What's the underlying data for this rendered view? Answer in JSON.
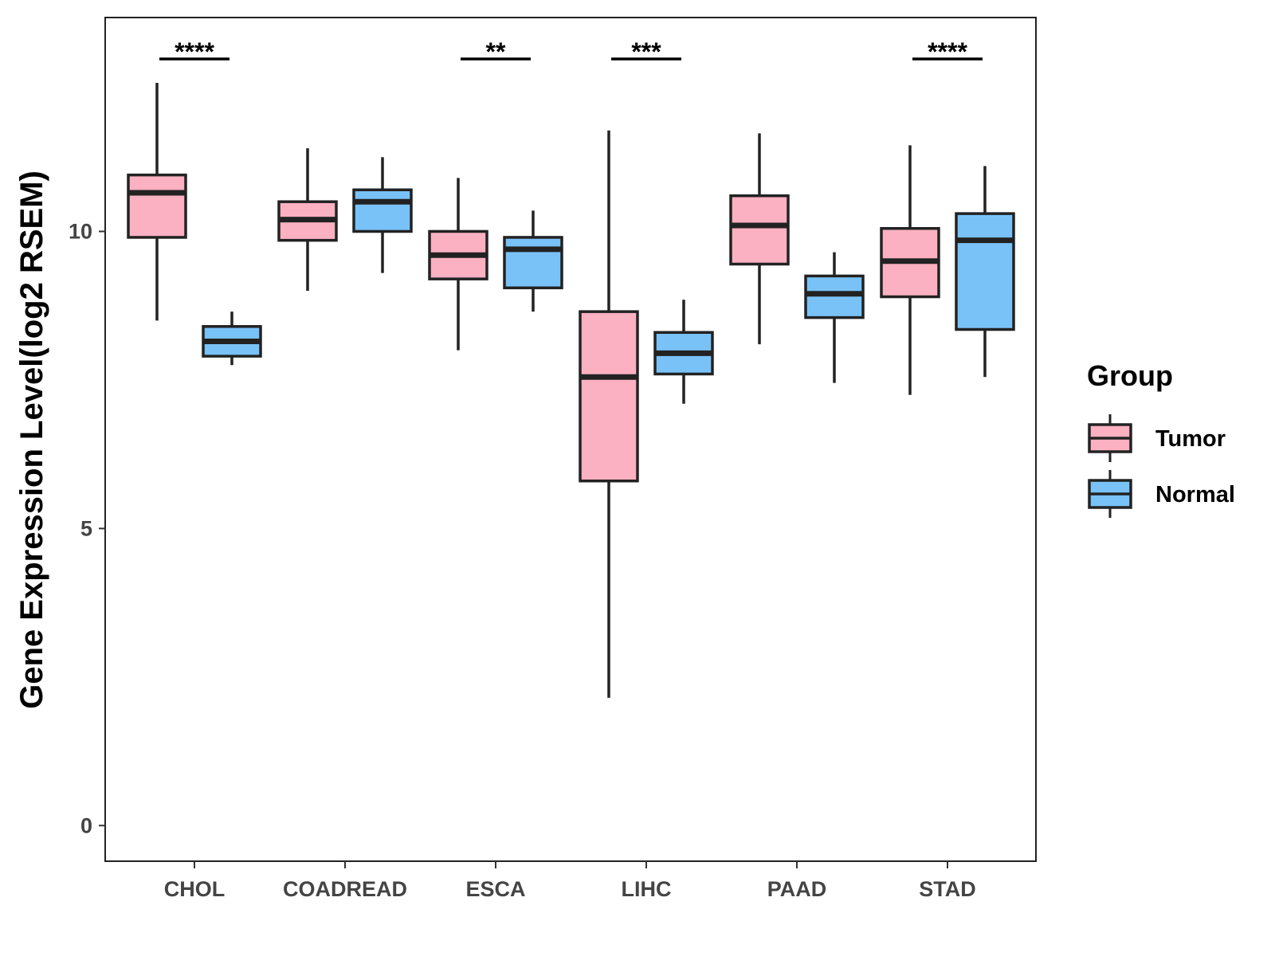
{
  "chart_data": {
    "type": "boxplot",
    "title": "",
    "xlabel": "",
    "ylabel": "Gene Expression Level(log2 RSEM)",
    "ylim": [
      -0.6,
      13.6
    ],
    "yticks": [
      0,
      5,
      10
    ],
    "categories": [
      "CHOL",
      "COADREAD",
      "ESCA",
      "LIHC",
      "PAAD",
      "STAD"
    ],
    "legend": {
      "title": "Group",
      "position": "right"
    },
    "colors": {
      "Tumor": "#FBB1C2",
      "Normal": "#79C2F8",
      "outline": "#222222"
    },
    "series": [
      {
        "name": "Tumor",
        "boxes": [
          {
            "min": 8.5,
            "q1": 9.9,
            "median": 10.65,
            "q3": 10.95,
            "max": 12.5
          },
          {
            "min": 9.0,
            "q1": 9.85,
            "median": 10.2,
            "q3": 10.5,
            "max": 11.4
          },
          {
            "min": 8.0,
            "q1": 9.2,
            "median": 9.6,
            "q3": 10.0,
            "max": 10.9
          },
          {
            "min": 2.15,
            "q1": 5.8,
            "median": 7.55,
            "q3": 8.65,
            "max": 11.7
          },
          {
            "min": 8.1,
            "q1": 9.45,
            "median": 10.1,
            "q3": 10.6,
            "max": 11.65
          },
          {
            "min": 7.25,
            "q1": 8.9,
            "median": 9.5,
            "q3": 10.05,
            "max": 11.45
          }
        ]
      },
      {
        "name": "Normal",
        "boxes": [
          {
            "min": 7.75,
            "q1": 7.9,
            "median": 8.15,
            "q3": 8.4,
            "max": 8.65
          },
          {
            "min": 9.3,
            "q1": 10.0,
            "median": 10.5,
            "q3": 10.7,
            "max": 11.25
          },
          {
            "min": 8.65,
            "q1": 9.05,
            "median": 9.7,
            "q3": 9.9,
            "max": 10.35
          },
          {
            "min": 7.1,
            "q1": 7.6,
            "median": 7.95,
            "q3": 8.3,
            "max": 8.85
          },
          {
            "min": 7.45,
            "q1": 8.55,
            "median": 8.95,
            "q3": 9.25,
            "max": 9.65
          },
          {
            "min": 7.55,
            "q1": 8.35,
            "median": 9.85,
            "q3": 10.3,
            "max": 11.1
          }
        ]
      }
    ],
    "significance": [
      {
        "category": "CHOL",
        "label": "****"
      },
      {
        "category": "ESCA",
        "label": "**"
      },
      {
        "category": "LIHC",
        "label": "***"
      },
      {
        "category": "STAD",
        "label": "****"
      }
    ]
  }
}
